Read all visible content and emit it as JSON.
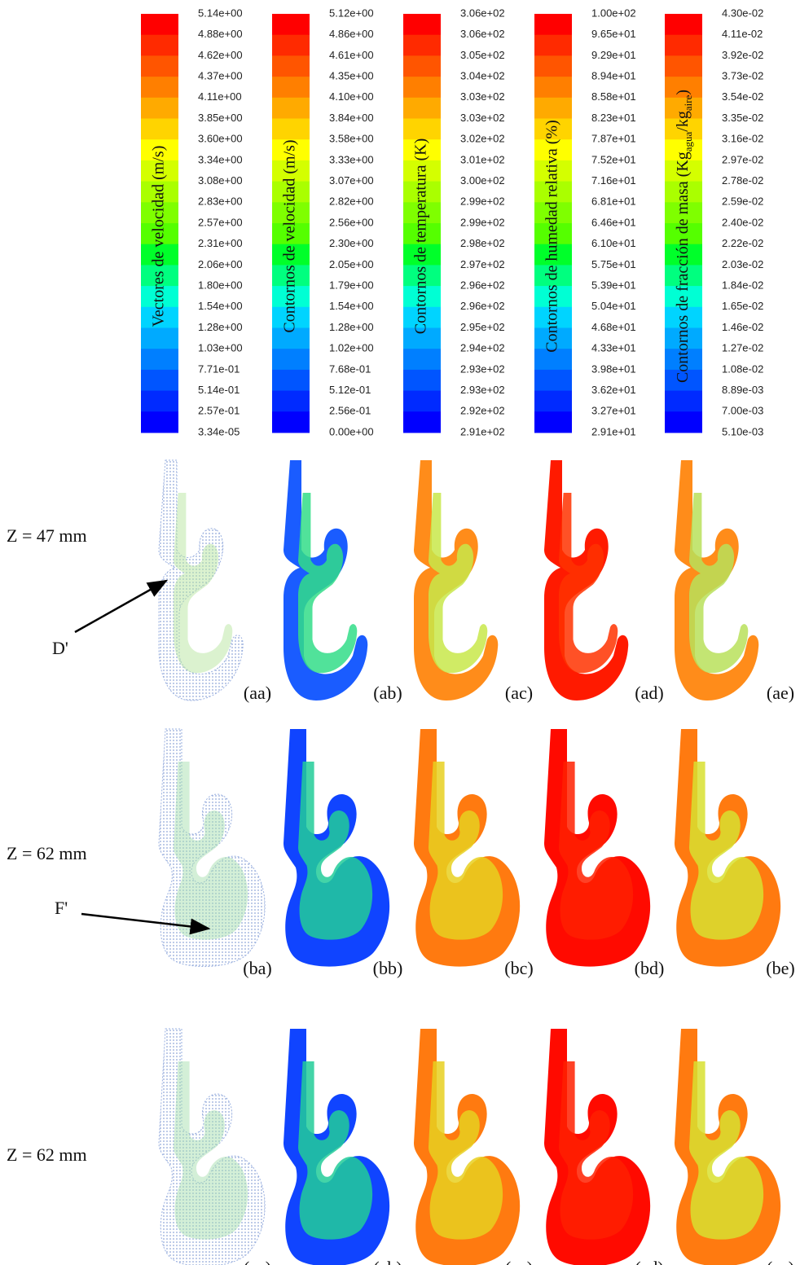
{
  "colorbars": [
    {
      "label": "Vectores de  velocidad (m/s)",
      "ticks": [
        "5.14e+00",
        "4.88e+00",
        "4.62e+00",
        "4.37e+00",
        "4.11e+00",
        "3.85e+00",
        "3.60e+00",
        "3.34e+00",
        "3.08e+00",
        "2.83e+00",
        "2.57e+00",
        "2.31e+00",
        "2.06e+00",
        "1.80e+00",
        "1.54e+00",
        "1.28e+00",
        "1.03e+00",
        "7.71e-01",
        "5.14e-01",
        "2.57e-01",
        "3.34e-05"
      ]
    },
    {
      "label": "Contornos de velocidad (m/s)",
      "ticks": [
        "5.12e+00",
        "4.86e+00",
        "4.61e+00",
        "4.35e+00",
        "4.10e+00",
        "3.84e+00",
        "3.58e+00",
        "3.33e+00",
        "3.07e+00",
        "2.82e+00",
        "2.56e+00",
        "2.30e+00",
        "2.05e+00",
        "1.79e+00",
        "1.54e+00",
        "1.28e+00",
        "1.02e+00",
        "7.68e-01",
        "5.12e-01",
        "2.56e-01",
        "0.00e+00"
      ]
    },
    {
      "label": "Contornos de temperatura (K)",
      "ticks": [
        "3.06e+02",
        "3.06e+02",
        "3.05e+02",
        "3.04e+02",
        "3.03e+02",
        "3.03e+02",
        "3.02e+02",
        "3.01e+02",
        "3.00e+02",
        "2.99e+02",
        "2.99e+02",
        "2.98e+02",
        "2.97e+02",
        "2.96e+02",
        "2.96e+02",
        "2.95e+02",
        "2.94e+02",
        "2.93e+02",
        "2.93e+02",
        "2.92e+02",
        "2.91e+02"
      ]
    },
    {
      "label": "Contornos de humedad relativa (%)",
      "ticks": [
        "1.00e+02",
        "9.65e+01",
        "9.29e+01",
        "8.94e+01",
        "8.58e+01",
        "8.23e+01",
        "7.87e+01",
        "7.52e+01",
        "7.16e+01",
        "6.81e+01",
        "6.46e+01",
        "6.10e+01",
        "5.75e+01",
        "5.39e+01",
        "5.04e+01",
        "4.68e+01",
        "4.33e+01",
        "3.98e+01",
        "3.62e+01",
        "3.27e+01",
        "2.91e+01"
      ]
    },
    {
      "label": [
        "Contornos de fracción de masa (Kg",
        "agua",
        "/kg",
        "aire",
        ")"
      ],
      "ticks": [
        "4.30e-02",
        "4.11e-02",
        "3.92e-02",
        "3.73e-02",
        "3.54e-02",
        "3.35e-02",
        "3.16e-02",
        "2.97e-02",
        "2.78e-02",
        "2.59e-02",
        "2.40e-02",
        "2.22e-02",
        "2.03e-02",
        "1.84e-02",
        "1.65e-02",
        "1.46e-02",
        "1.27e-02",
        "1.08e-02",
        "8.89e-03",
        "7.00e-03",
        "5.10e-03"
      ]
    }
  ],
  "rows": [
    {
      "label": "Z = 47 mm",
      "panels": [
        "(aa)",
        "(ab)",
        "(ac)",
        "(ad)",
        "(ae)"
      ]
    },
    {
      "label": "Z = 62 mm",
      "panels": [
        "(ba)",
        "(bb)",
        "(bc)",
        "(bd)",
        "(be)"
      ]
    },
    {
      "label": "Z = 62 mm",
      "panels": [
        "(ca)",
        "(cb)",
        "(cc)",
        "(cd)",
        "(ce)"
      ]
    }
  ],
  "annotations": [
    "D'",
    "F'"
  ]
}
